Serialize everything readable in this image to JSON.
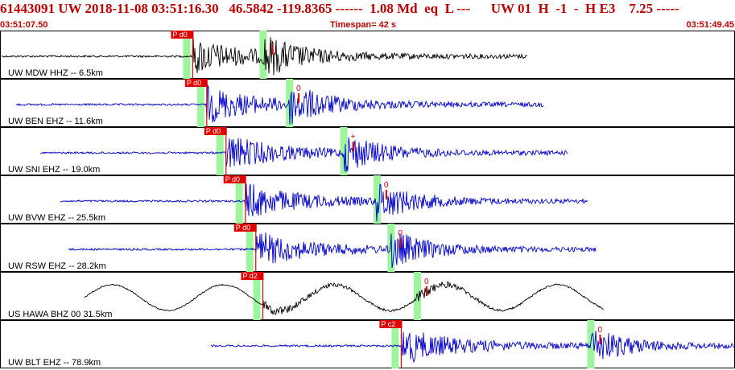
{
  "header": {
    "title": "61443091 UW 2018-11-08 03:51:16.30   46.5842 -119.8365 ------  1.08 Md  eq  L ---      UW 01  H  -1  -  H E3    7.25 -----",
    "start_time": "03:51:07.50",
    "timespan": "Timespan=  42 s",
    "end_time": "03:51:49.45"
  },
  "colors": {
    "pick": "#e00000",
    "window": "#9ef59e",
    "trace_vertical": "#000000",
    "trace_short": "#0000cc"
  },
  "chart_data": {
    "type": "line",
    "title": "",
    "xlabel": "",
    "ylabel": "",
    "xlim": [
      "03:51:07.50",
      "03:51:49.45"
    ],
    "grid": false,
    "traces": [
      {
        "label": "UW MDW HHZ -- 6.5km",
        "color": "#000000",
        "pick": "P d0",
        "weight": "-",
        "p_time_s": 11.0,
        "s_time_s": 15.0
      },
      {
        "label": "UW BEN EHZ -- 11.6km",
        "color": "#0000cc",
        "pick": "P d0",
        "weight": "0",
        "p_time_s": 11.8,
        "s_time_s": 16.5
      },
      {
        "label": "UW SNI EHZ -- 19.0km",
        "color": "#0000cc",
        "pick": "P d0",
        "weight": "+",
        "p_time_s": 12.9,
        "s_time_s": 19.6
      },
      {
        "label": "UW BVW EHZ -- 25.5km",
        "color": "#0000cc",
        "pick": "P d0",
        "weight": "0",
        "p_time_s": 14.0,
        "s_time_s": 21.5
      },
      {
        "label": "UW RSW EHZ -- 28.2km",
        "color": "#0000cc",
        "pick": "P d0",
        "weight": "0",
        "p_time_s": 14.6,
        "s_time_s": 22.3
      },
      {
        "label": "US HAWA BHZ 00 31.5km",
        "color": "#000000",
        "pick": "P d2",
        "weight": "0",
        "p_time_s": 15.0,
        "s_time_s": 23.8
      },
      {
        "label": "UW BLT EHZ -- 78.9km",
        "color": "#0000cc",
        "pick": "P c2",
        "weight": "0",
        "p_time_s": 22.9,
        "s_time_s": 33.7
      }
    ]
  }
}
